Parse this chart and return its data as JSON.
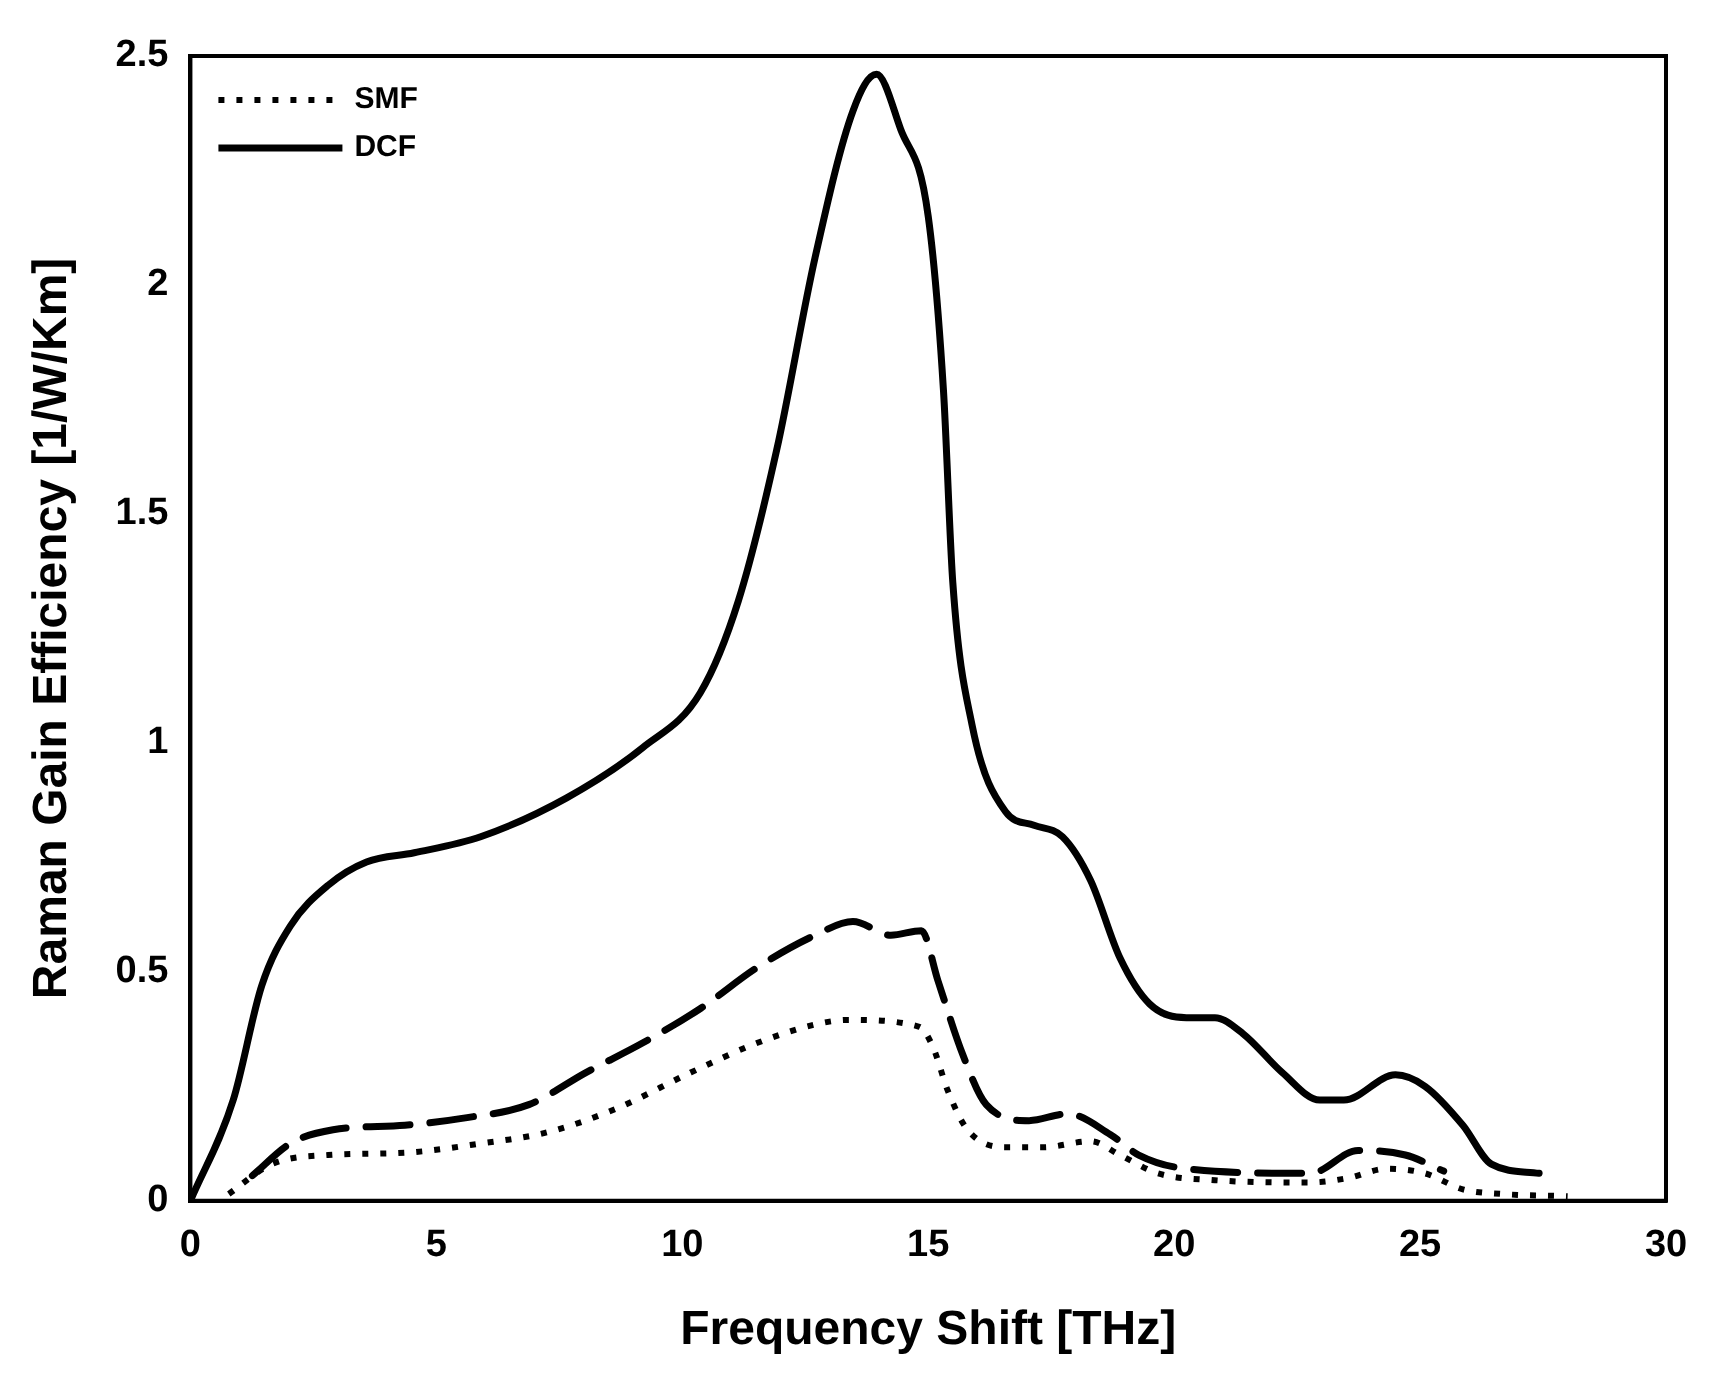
{
  "chart_data": {
    "type": "line",
    "xlabel": "Frequency Shift [THz]",
    "ylabel": "Raman Gain Efficiency [1/W/Km]",
    "xlim": [
      0,
      30
    ],
    "xticks": [
      0,
      5,
      10,
      15,
      20,
      25,
      30
    ],
    "ylim": [
      0,
      2.5
    ],
    "yticks": [
      0,
      0.5,
      1,
      1.5,
      2,
      2.5
    ],
    "grid": false,
    "legend": "top left",
    "marker": "none",
    "series": [
      {
        "name": "SMF",
        "color": "#000000",
        "line_style": "dotted",
        "x": [
          0.78,
          1.65,
          2.8,
          4.36,
          5.9,
          7.27,
          8.63,
          10.17,
          11.53,
          12.7,
          13.37,
          14.82,
          15.1,
          15.4,
          15.8,
          16.57,
          17.34,
          18.3,
          18.9,
          19.67,
          20.83,
          22.77,
          23.55,
          24.32,
          25.1,
          25.87,
          26.65,
          28.0
        ],
        "values": [
          0.015,
          0.08,
          0.1,
          0.105,
          0.125,
          0.15,
          0.2,
          0.28,
          0.345,
          0.385,
          0.395,
          0.38,
          0.335,
          0.24,
          0.155,
          0.117,
          0.117,
          0.13,
          0.1,
          0.06,
          0.045,
          0.04,
          0.05,
          0.07,
          0.06,
          0.025,
          0.015,
          0.01
        ]
      },
      {
        "name": "DCF",
        "color": "#000000",
        "line_style": "solid",
        "x": [
          0,
          0.87,
          1.45,
          2.03,
          2.81,
          3.58,
          4.55,
          5.9,
          7.65,
          9.2,
          10.37,
          11.14,
          11.92,
          12.7,
          13.47,
          13.95,
          14.44,
          15.0,
          15.31,
          15.5,
          15.89,
          16.57,
          17.15,
          17.73,
          18.3,
          18.9,
          19.5,
          20.25,
          20.83,
          21.4,
          22.2,
          22.96,
          23.45,
          24.5,
          25.1,
          25.87,
          26.45,
          27.42
        ],
        "values": [
          0,
          0.22,
          0.47,
          0.6,
          0.69,
          0.74,
          0.76,
          0.795,
          0.88,
          0.99,
          1.11,
          1.31,
          1.64,
          2.06,
          2.38,
          2.46,
          2.34,
          2.15,
          1.77,
          1.35,
          1.04,
          0.85,
          0.82,
          0.795,
          0.7,
          0.53,
          0.43,
          0.4,
          0.4,
          0.365,
          0.28,
          0.22,
          0.22,
          0.275,
          0.25,
          0.165,
          0.08,
          0.06
        ]
      },
      {
        "color": "#000000",
        "line_style": "dashed",
        "x": [
          1.26,
          2.03,
          2.9,
          4.36,
          5.52,
          6.88,
          8.04,
          9.2,
          10.37,
          11.53,
          12.7,
          13.47,
          14.24,
          14.86,
          15.2,
          15.7,
          16.18,
          17.05,
          17.83,
          18.7,
          19.28,
          20.25,
          22.77,
          23.74,
          24.7,
          25.48
        ],
        "values": [
          0.055,
          0.125,
          0.155,
          0.165,
          0.18,
          0.21,
          0.28,
          0.345,
          0.42,
          0.51,
          0.58,
          0.61,
          0.58,
          0.59,
          0.48,
          0.32,
          0.21,
          0.175,
          0.19,
          0.145,
          0.1,
          0.07,
          0.06,
          0.11,
          0.1,
          0.065
        ]
      }
    ]
  }
}
